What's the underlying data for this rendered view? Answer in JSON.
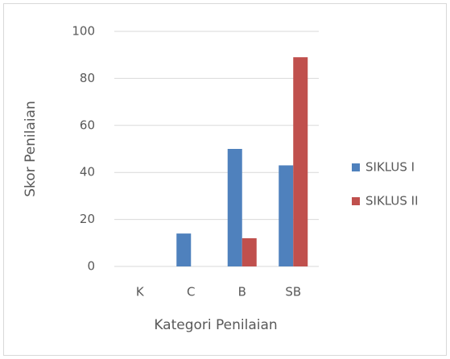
{
  "chart_data": {
    "type": "bar",
    "categories": [
      "K",
      "C",
      "B",
      "SB"
    ],
    "series": [
      {
        "name": "SIKLUS I",
        "color": "#4f81bd",
        "values": [
          0,
          14,
          50,
          43
        ]
      },
      {
        "name": "SIKLUS II",
        "color": "#c0504d",
        "values": [
          0,
          0,
          12,
          89
        ]
      }
    ],
    "y_label": "Skor Penilaian",
    "x_label": "Kategori Penilaian",
    "ylim": [
      0,
      100
    ],
    "yticks": [
      0,
      20,
      40,
      60,
      80,
      100
    ],
    "grid": true,
    "legend": "right"
  }
}
